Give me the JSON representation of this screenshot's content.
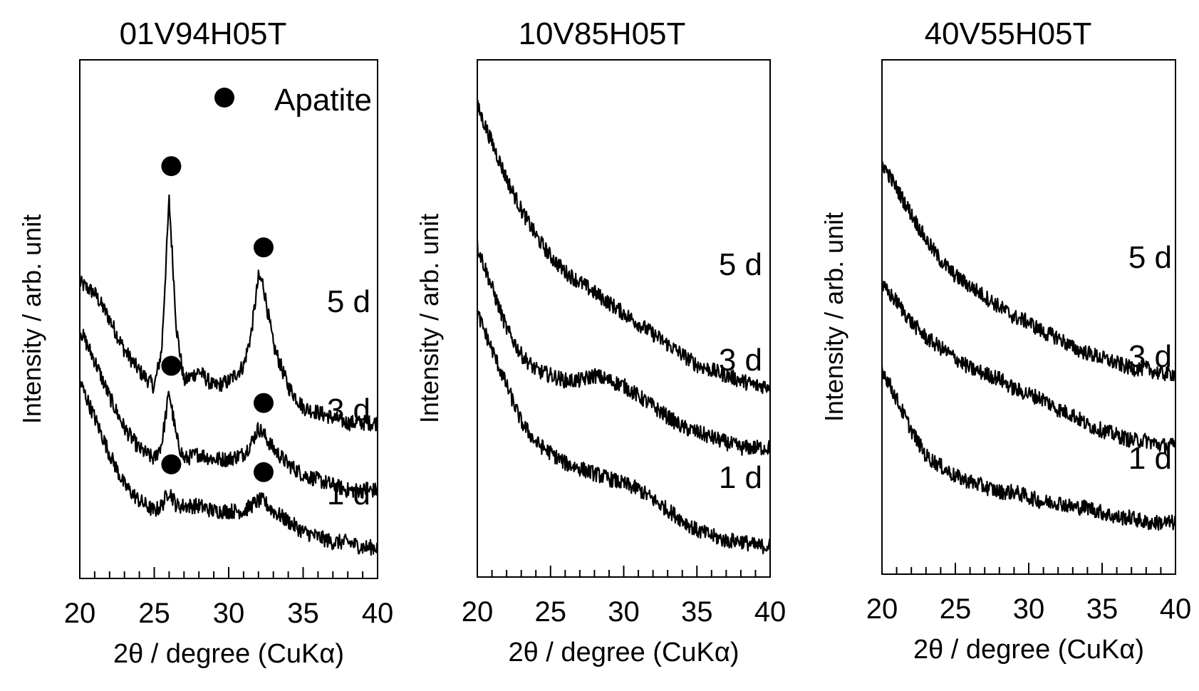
{
  "chart_data": [
    {
      "type": "line",
      "title": "01V94H05T",
      "xlabel": "2θ / degree (CuKα)",
      "ylabel": "Intensity / arb. unit",
      "xlim": [
        20,
        40
      ],
      "xticks": [
        "20",
        "25",
        "30",
        "35",
        "40"
      ],
      "yticks": false,
      "legend": {
        "label": "Apatite",
        "marker": "filled-circle",
        "placement": "top-right"
      },
      "series": [
        {
          "name": "5 d",
          "x": [
            20,
            21,
            22,
            23,
            24,
            25,
            25.5,
            26.0,
            26.5,
            27,
            28,
            29,
            30,
            31,
            31.5,
            32.0,
            32.3,
            33,
            34,
            35,
            36,
            37,
            38,
            39,
            40
          ],
          "y": [
            0.57,
            0.55,
            0.5,
            0.44,
            0.4,
            0.37,
            0.44,
            0.73,
            0.48,
            0.38,
            0.4,
            0.37,
            0.38,
            0.41,
            0.47,
            0.58,
            0.57,
            0.45,
            0.37,
            0.33,
            0.32,
            0.31,
            0.3,
            0.3,
            0.3
          ],
          "peaks": [
            26.0,
            32.2
          ]
        },
        {
          "name": "3 d",
          "x": [
            20,
            21,
            22,
            23,
            24,
            25,
            25.5,
            26.0,
            26.5,
            27,
            28,
            29,
            30,
            31,
            31.5,
            32.0,
            32.3,
            33,
            34,
            35,
            36,
            37,
            38,
            39,
            40
          ],
          "y": [
            0.48,
            0.42,
            0.35,
            0.29,
            0.25,
            0.23,
            0.26,
            0.36,
            0.27,
            0.23,
            0.24,
            0.23,
            0.23,
            0.24,
            0.26,
            0.29,
            0.28,
            0.25,
            0.22,
            0.2,
            0.19,
            0.18,
            0.17,
            0.17,
            0.17
          ]
        },
        {
          "name": "1 d",
          "x": [
            20,
            21,
            22,
            23,
            24,
            25,
            25.5,
            26.0,
            26.5,
            27,
            28,
            29,
            30,
            31,
            31.5,
            32.0,
            32.3,
            33,
            34,
            35,
            36,
            37,
            38,
            39,
            40
          ],
          "y": [
            0.38,
            0.31,
            0.24,
            0.18,
            0.15,
            0.13,
            0.14,
            0.17,
            0.14,
            0.14,
            0.14,
            0.13,
            0.13,
            0.13,
            0.14,
            0.15,
            0.15,
            0.13,
            0.11,
            0.09,
            0.08,
            0.07,
            0.07,
            0.06,
            0.06
          ],
          "peaks": [
            26.0,
            32.2
          ]
        }
      ]
    },
    {
      "type": "line",
      "title": "10V85H05T",
      "xlabel": "2θ / degree (CuKα)",
      "ylabel": "Intensity / arb. unit",
      "xlim": [
        20,
        40
      ],
      "xticks": [
        "20",
        "25",
        "30",
        "35",
        "40"
      ],
      "yticks": false,
      "series": [
        {
          "name": "5 d",
          "x": [
            20,
            21,
            22,
            23,
            24,
            25,
            26,
            27,
            28,
            29,
            30,
            31,
            32,
            33,
            34,
            35,
            36,
            37,
            38,
            39,
            40
          ],
          "y": [
            0.91,
            0.84,
            0.77,
            0.71,
            0.66,
            0.62,
            0.59,
            0.57,
            0.55,
            0.53,
            0.51,
            0.49,
            0.47,
            0.45,
            0.43,
            0.41,
            0.4,
            0.39,
            0.38,
            0.37,
            0.37
          ]
        },
        {
          "name": "3 d",
          "x": [
            20,
            21,
            22,
            23,
            24,
            25,
            26,
            27,
            28,
            29,
            30,
            31,
            32,
            33,
            34,
            35,
            36,
            37,
            38,
            39,
            40
          ],
          "y": [
            0.64,
            0.56,
            0.48,
            0.43,
            0.4,
            0.39,
            0.38,
            0.38,
            0.39,
            0.38,
            0.37,
            0.35,
            0.33,
            0.31,
            0.29,
            0.28,
            0.27,
            0.26,
            0.25,
            0.25,
            0.25
          ]
        },
        {
          "name": "1 d",
          "x": [
            20,
            21,
            22,
            23,
            24,
            25,
            26,
            27,
            28,
            29,
            30,
            31,
            32,
            33,
            34,
            35,
            36,
            37,
            38,
            39,
            40
          ],
          "y": [
            0.51,
            0.44,
            0.37,
            0.3,
            0.26,
            0.24,
            0.22,
            0.21,
            0.2,
            0.19,
            0.18,
            0.17,
            0.15,
            0.13,
            0.11,
            0.09,
            0.08,
            0.07,
            0.07,
            0.06,
            0.06
          ]
        }
      ]
    },
    {
      "type": "line",
      "title": "40V55H05T",
      "xlabel": "2θ / degree (CuKα)",
      "ylabel": "Intensity / arb. unit",
      "xlim": [
        20,
        40
      ],
      "xticks": [
        "20",
        "25",
        "30",
        "35",
        "40"
      ],
      "yticks": false,
      "series": [
        {
          "name": "5 d",
          "x": [
            20,
            21,
            22,
            23,
            24,
            25,
            26,
            27,
            28,
            29,
            30,
            31,
            32,
            33,
            34,
            35,
            36,
            37,
            38,
            39,
            40
          ],
          "y": [
            0.8,
            0.75,
            0.7,
            0.65,
            0.61,
            0.58,
            0.56,
            0.54,
            0.52,
            0.5,
            0.49,
            0.47,
            0.46,
            0.44,
            0.43,
            0.42,
            0.41,
            0.4,
            0.4,
            0.39,
            0.39
          ]
        },
        {
          "name": "3 d",
          "x": [
            20,
            21,
            22,
            23,
            24,
            25,
            26,
            27,
            28,
            29,
            30,
            31,
            32,
            33,
            34,
            35,
            36,
            37,
            38,
            39,
            40
          ],
          "y": [
            0.56,
            0.53,
            0.49,
            0.46,
            0.44,
            0.42,
            0.4,
            0.39,
            0.38,
            0.36,
            0.35,
            0.34,
            0.32,
            0.31,
            0.29,
            0.28,
            0.27,
            0.26,
            0.26,
            0.25,
            0.25
          ]
        },
        {
          "name": "1 d",
          "x": [
            20,
            21,
            22,
            23,
            24,
            25,
            26,
            27,
            28,
            29,
            30,
            31,
            32,
            33,
            34,
            35,
            36,
            37,
            38,
            39,
            40
          ],
          "y": [
            0.4,
            0.34,
            0.28,
            0.23,
            0.21,
            0.19,
            0.18,
            0.17,
            0.16,
            0.16,
            0.15,
            0.14,
            0.14,
            0.13,
            0.13,
            0.12,
            0.11,
            0.11,
            0.1,
            0.1,
            0.1
          ]
        }
      ]
    }
  ]
}
